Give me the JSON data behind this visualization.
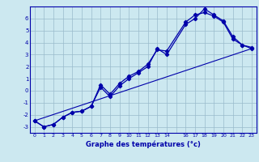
{
  "xlabel": "Graphe des températures (°c)",
  "bg_color": "#cce8f0",
  "line_color": "#0000aa",
  "grid_color": "#99bbcc",
  "yticks": [
    -3,
    -2,
    -1,
    0,
    1,
    2,
    3,
    4,
    5,
    6
  ],
  "ylim": [
    -3.5,
    7.0
  ],
  "xlim": [
    -0.5,
    23.5
  ],
  "xtick_labels": [
    "0",
    "1",
    "2",
    "3",
    "4",
    "5",
    "6",
    "7",
    "8",
    "9",
    "10",
    "11",
    "12",
    "13",
    "14",
    "",
    "16",
    "17",
    "18",
    "19",
    "20",
    "21",
    "22",
    "23"
  ],
  "line1_x": [
    0,
    1,
    2,
    3,
    4,
    5,
    6,
    7,
    8,
    9,
    10,
    11,
    12,
    13,
    14,
    16,
    17,
    18,
    19,
    20,
    21,
    22,
    23
  ],
  "line1_y": [
    -2.5,
    -3.0,
    -2.8,
    -2.2,
    -1.8,
    -1.7,
    -1.3,
    0.3,
    -0.5,
    0.4,
    1.0,
    1.5,
    2.0,
    3.5,
    3.0,
    5.5,
    6.0,
    6.8,
    6.3,
    5.8,
    4.5,
    3.8,
    3.5
  ],
  "line2_x": [
    0,
    1,
    2,
    3,
    4,
    5,
    6,
    7,
    8,
    9,
    10,
    11,
    12,
    13,
    14,
    16,
    17,
    18,
    19,
    20,
    21,
    22,
    23
  ],
  "line2_y": [
    -2.5,
    -3.0,
    -2.8,
    -2.2,
    -1.8,
    -1.7,
    -1.3,
    0.5,
    -0.3,
    0.6,
    1.2,
    1.6,
    2.2,
    3.4,
    3.3,
    5.7,
    6.3,
    6.5,
    6.2,
    5.7,
    4.3,
    3.8,
    3.6
  ],
  "line3_x": [
    0,
    23
  ],
  "line3_y": [
    -2.5,
    3.5
  ]
}
